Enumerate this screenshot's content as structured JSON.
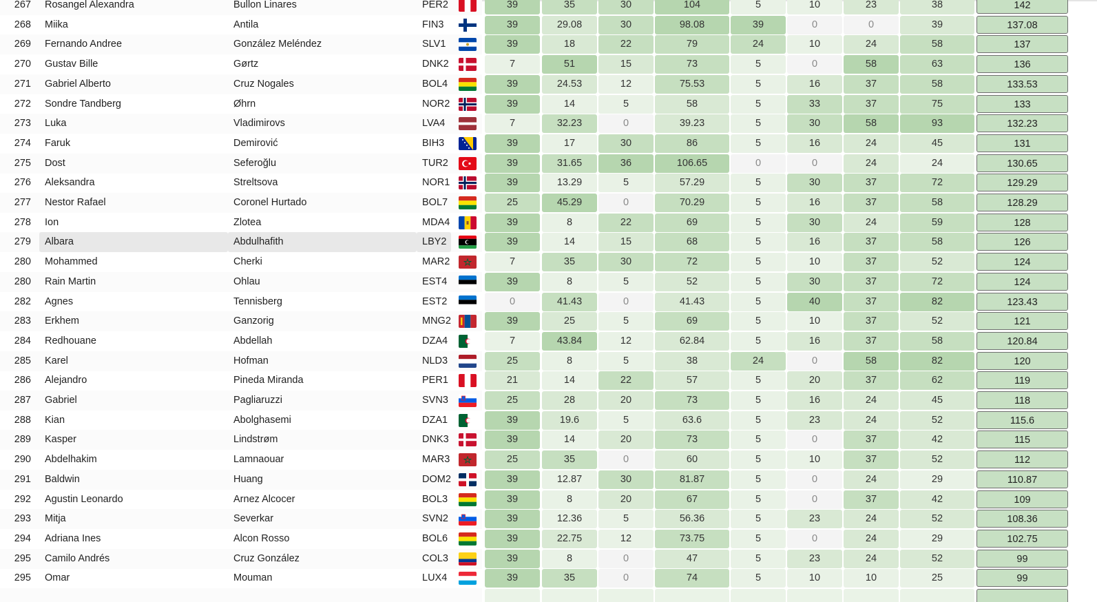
{
  "columns_x": [
    704,
    787,
    869,
    951,
    1061,
    1143,
    1225,
    1307
  ],
  "columns_w": [
    80,
    80,
    80,
    108,
    80,
    80,
    80,
    108
  ],
  "highlight_rank_index": 12,
  "rows": [
    {
      "rank": "267",
      "first": "Rosangel Alexandra",
      "last": "Bullon Linares",
      "code": "PER2",
      "flag": "peru",
      "scores": [
        "39",
        "35",
        "30",
        "104",
        "5",
        "10",
        "23",
        "38"
      ],
      "total": "142"
    },
    {
      "rank": "268",
      "first": "Miika",
      "last": "Antila",
      "code": "FIN3",
      "flag": "finland",
      "scores": [
        "39",
        "29.08",
        "30",
        "98.08",
        "39",
        "0",
        "0",
        "39"
      ],
      "total": "137.08"
    },
    {
      "rank": "269",
      "first": "Fernando Andree",
      "last": "González Meléndez",
      "code": "SLV1",
      "flag": "elsalvador",
      "scores": [
        "39",
        "18",
        "22",
        "79",
        "24",
        "10",
        "24",
        "58"
      ],
      "total": "137"
    },
    {
      "rank": "270",
      "first": "Gustav Bille",
      "last": "Gørtz",
      "code": "DNK2",
      "flag": "denmark",
      "scores": [
        "7",
        "51",
        "15",
        "73",
        "5",
        "0",
        "58",
        "63"
      ],
      "total": "136"
    },
    {
      "rank": "271",
      "first": "Gabriel Alberto",
      "last": "Cruz Nogales",
      "code": "BOL4",
      "flag": "bolivia",
      "scores": [
        "39",
        "24.53",
        "12",
        "75.53",
        "5",
        "16",
        "37",
        "58"
      ],
      "total": "133.53"
    },
    {
      "rank": "272",
      "first": "Sondre Tandberg",
      "last": "Øhrn",
      "code": "NOR2",
      "flag": "norway",
      "scores": [
        "39",
        "14",
        "5",
        "58",
        "5",
        "33",
        "37",
        "75"
      ],
      "total": "133"
    },
    {
      "rank": "273",
      "first": "Luka",
      "last": "Vladimirovs",
      "code": "LVA4",
      "flag": "latvia",
      "scores": [
        "7",
        "32.23",
        "0",
        "39.23",
        "5",
        "30",
        "58",
        "93"
      ],
      "total": "132.23"
    },
    {
      "rank": "274",
      "first": "Faruk",
      "last": "Demirović",
      "code": "BIH3",
      "flag": "bosnia",
      "scores": [
        "39",
        "17",
        "30",
        "86",
        "5",
        "16",
        "24",
        "45"
      ],
      "total": "131"
    },
    {
      "rank": "275",
      "first": "Dost",
      "last": "Seferoğlu",
      "code": "TUR2",
      "flag": "turkey",
      "scores": [
        "39",
        "31.65",
        "36",
        "106.65",
        "0",
        "0",
        "24",
        "24"
      ],
      "total": "130.65"
    },
    {
      "rank": "276",
      "first": "Aleksandra",
      "last": "Streltsova",
      "code": "NOR1",
      "flag": "norway",
      "scores": [
        "39",
        "13.29",
        "5",
        "57.29",
        "5",
        "30",
        "37",
        "72"
      ],
      "total": "129.29"
    },
    {
      "rank": "277",
      "first": "Nestor Rafael",
      "last": "Coronel Hurtado",
      "code": "BOL7",
      "flag": "bolivia",
      "scores": [
        "25",
        "45.29",
        "0",
        "70.29",
        "5",
        "16",
        "37",
        "58"
      ],
      "total": "128.29"
    },
    {
      "rank": "278",
      "first": "Ion",
      "last": "Zlotea",
      "code": "MDA4",
      "flag": "moldova",
      "scores": [
        "39",
        "8",
        "22",
        "69",
        "5",
        "30",
        "24",
        "59"
      ],
      "total": "128"
    },
    {
      "rank": "279",
      "first": "Albara",
      "last": "Abdulhafith",
      "code": "LBY2",
      "flag": "libya",
      "scores": [
        "39",
        "14",
        "15",
        "68",
        "5",
        "16",
        "37",
        "58"
      ],
      "total": "126"
    },
    {
      "rank": "280",
      "first": "Mohammed",
      "last": "Cherki",
      "code": "MAR2",
      "flag": "morocco",
      "scores": [
        "7",
        "35",
        "30",
        "72",
        "5",
        "10",
        "37",
        "52"
      ],
      "total": "124"
    },
    {
      "rank": "280",
      "first": "Rain Martin",
      "last": "Ohlau",
      "code": "EST4",
      "flag": "estonia",
      "scores": [
        "39",
        "8",
        "5",
        "52",
        "5",
        "30",
        "37",
        "72"
      ],
      "total": "124"
    },
    {
      "rank": "282",
      "first": "Agnes",
      "last": "Tennisberg",
      "code": "EST2",
      "flag": "estonia",
      "scores": [
        "0",
        "41.43",
        "0",
        "41.43",
        "5",
        "40",
        "37",
        "82"
      ],
      "total": "123.43"
    },
    {
      "rank": "283",
      "first": "Erkhem",
      "last": "Ganzorig",
      "code": "MNG2",
      "flag": "mongolia",
      "scores": [
        "39",
        "25",
        "5",
        "69",
        "5",
        "10",
        "37",
        "52"
      ],
      "total": "121"
    },
    {
      "rank": "284",
      "first": "Redhouane",
      "last": "Abdellah",
      "code": "DZA4",
      "flag": "algeria",
      "scores": [
        "7",
        "43.84",
        "12",
        "62.84",
        "5",
        "16",
        "37",
        "58"
      ],
      "total": "120.84"
    },
    {
      "rank": "285",
      "first": "Karel",
      "last": "Hofman",
      "code": "NLD3",
      "flag": "netherlands",
      "scores": [
        "25",
        "8",
        "5",
        "38",
        "24",
        "0",
        "58",
        "82"
      ],
      "total": "120"
    },
    {
      "rank": "286",
      "first": "Alejandro",
      "last": "Pineda Miranda",
      "code": "PER1",
      "flag": "peru",
      "scores": [
        "21",
        "14",
        "22",
        "57",
        "5",
        "20",
        "37",
        "62"
      ],
      "total": "119"
    },
    {
      "rank": "287",
      "first": "Gabriel",
      "last": "Pagliaruzzi",
      "code": "SVN3",
      "flag": "slovenia",
      "scores": [
        "25",
        "28",
        "20",
        "73",
        "5",
        "16",
        "24",
        "45"
      ],
      "total": "118"
    },
    {
      "rank": "288",
      "first": "Kian",
      "last": "Abolghasemi",
      "code": "DZA1",
      "flag": "algeria",
      "scores": [
        "39",
        "19.6",
        "5",
        "63.6",
        "5",
        "23",
        "24",
        "52"
      ],
      "total": "115.6"
    },
    {
      "rank": "289",
      "first": "Kasper",
      "last": "Lindstrøm",
      "code": "DNK3",
      "flag": "denmark",
      "scores": [
        "39",
        "14",
        "20",
        "73",
        "5",
        "0",
        "37",
        "42"
      ],
      "total": "115"
    },
    {
      "rank": "290",
      "first": "Abdelhakim",
      "last": "Lamnaouar",
      "code": "MAR3",
      "flag": "morocco",
      "scores": [
        "25",
        "35",
        "0",
        "60",
        "5",
        "10",
        "37",
        "52"
      ],
      "total": "112"
    },
    {
      "rank": "291",
      "first": "Baldwin",
      "last": "Huang",
      "code": "DOM2",
      "flag": "dominican",
      "scores": [
        "39",
        "12.87",
        "30",
        "81.87",
        "5",
        "0",
        "24",
        "29"
      ],
      "total": "110.87"
    },
    {
      "rank": "292",
      "first": "Agustin Leonardo",
      "last": "Arnez Alcocer",
      "code": "BOL3",
      "flag": "bolivia",
      "scores": [
        "39",
        "8",
        "20",
        "67",
        "5",
        "0",
        "37",
        "42"
      ],
      "total": "109"
    },
    {
      "rank": "293",
      "first": "Mitja",
      "last": "Severkar",
      "code": "SVN2",
      "flag": "slovenia",
      "scores": [
        "39",
        "12.36",
        "5",
        "56.36",
        "5",
        "23",
        "24",
        "52"
      ],
      "total": "108.36"
    },
    {
      "rank": "294",
      "first": "Adriana Ines",
      "last": "Alcon Rosso",
      "code": "BOL6",
      "flag": "bolivia",
      "scores": [
        "39",
        "22.75",
        "12",
        "73.75",
        "5",
        "0",
        "24",
        "29"
      ],
      "total": "102.75"
    },
    {
      "rank": "295",
      "first": "Camilo Andrés",
      "last": "Cruz González",
      "code": "COL3",
      "flag": "colombia",
      "scores": [
        "39",
        "8",
        "0",
        "47",
        "5",
        "23",
        "24",
        "52"
      ],
      "total": "99"
    },
    {
      "rank": "295",
      "first": "Omar",
      "last": "Mouman",
      "code": "LUX4",
      "flag": "luxembourg",
      "scores": [
        "39",
        "35",
        "0",
        "74",
        "5",
        "10",
        "10",
        "25"
      ],
      "total": "99"
    },
    {
      "rank": "",
      "first": "",
      "last": "",
      "code": "",
      "flag": "",
      "scores": [
        "",
        "",
        "",
        "",
        "",
        "",
        "",
        ""
      ],
      "total": ""
    }
  ]
}
